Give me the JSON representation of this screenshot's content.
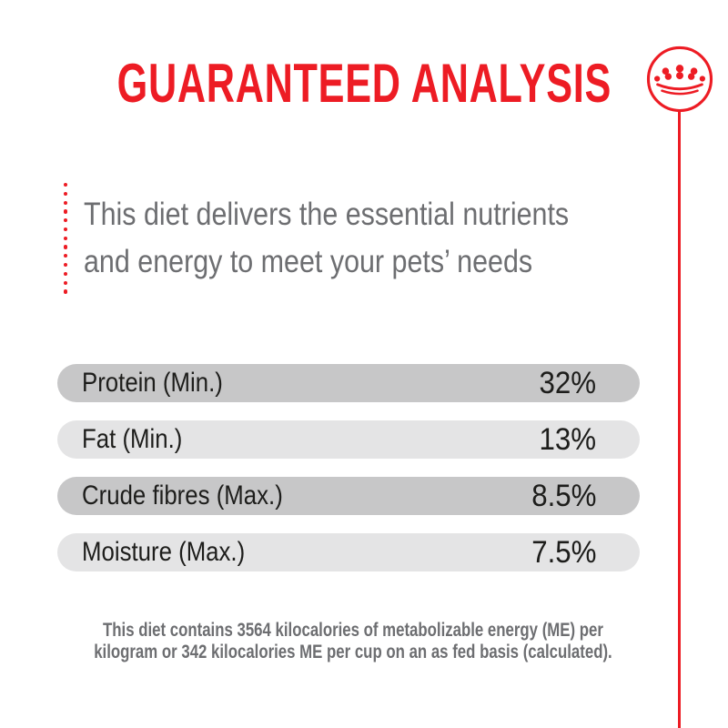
{
  "title": "GUARANTEED ANALYSIS",
  "brand": {
    "logo_icon": "royal-canin-crown-icon"
  },
  "intro": {
    "line1": "This diet delivers the essential nutrients",
    "line2": "and energy to meet your pets’ needs"
  },
  "nutrients": [
    {
      "label": "Protein (Min.)",
      "value": "32%"
    },
    {
      "label": "Fat (Min.)",
      "value": "13%"
    },
    {
      "label": "Crude fibres (Max.)",
      "value": "8.5%"
    },
    {
      "label": "Moisture (Max.)",
      "value": "7.5%"
    }
  ],
  "footnote": {
    "line1": "This diet contains 3564 kilocalories of metabolizable energy (ME) per",
    "line2": "kilogram or 342 kilocalories ME per cup on an as fed basis (calculated)."
  },
  "colors": {
    "brand_red": "#ED1C24",
    "text_gray": "#6D6E71",
    "bar_dark": "#C7C7C8",
    "bar_light": "#E4E4E5",
    "bar_text": "#1D1D1B"
  },
  "dotted_line_dot_count": 13
}
